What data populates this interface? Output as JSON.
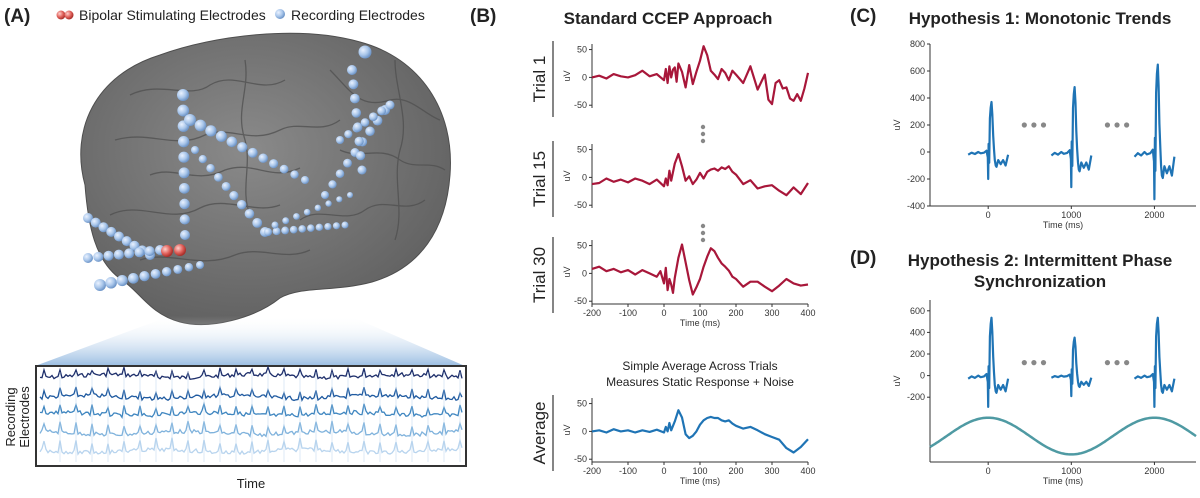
{
  "colors": {
    "trial_trace": "#a8173a",
    "average_trace": "#1f74b5",
    "hypothesis_trace": "#1f74b5",
    "sine_wave": "#4f9aa3",
    "stim_electrode": "#d9534f",
    "rec_electrode": "#a9c6ea",
    "brain": "#727272",
    "dots": "#888888"
  },
  "panel_a": {
    "letter": "(A)",
    "legend_stim": "Bipolar Stimulating Electrodes",
    "legend_rec": "Recording Electrodes",
    "ylabel_line1": "Recording",
    "ylabel_line2": "Electrodes",
    "xlabel": "Time"
  },
  "panel_b": {
    "letter": "(B)",
    "title": "Standard CCEP Approach",
    "average_caption_line1": "Simple Average Across Trials",
    "average_caption_line2": "Measures Static Response + Noise",
    "average_label": "Average"
  },
  "panel_c": {
    "letter": "(C)",
    "title": "Hypothesis 1: Monotonic Trends"
  },
  "panel_d": {
    "letter": "(D)",
    "title_line1": "Hypothesis 2: Intermittent Phase",
    "title_line2": "Synchronization"
  },
  "chart_data": [
    {
      "id": "trial1",
      "type": "line",
      "label": "Trial 1",
      "ylabel": "uV",
      "xlabel": "",
      "xlim": [
        -200,
        400
      ],
      "ylim": [
        -55,
        60
      ],
      "xticks": [],
      "yticks": [
        50,
        0,
        -50
      ],
      "ytick_labels": [
        "50",
        "0",
        "-50"
      ],
      "x": [
        -200,
        -180,
        -160,
        -140,
        -120,
        -100,
        -80,
        -60,
        -40,
        -20,
        0,
        5,
        10,
        15,
        20,
        25,
        30,
        35,
        40,
        50,
        60,
        70,
        80,
        90,
        100,
        110,
        120,
        130,
        140,
        150,
        160,
        170,
        180,
        190,
        200,
        220,
        240,
        260,
        280,
        290,
        300,
        310,
        320,
        330,
        340,
        350,
        360,
        370,
        380,
        390,
        400
      ],
      "y": [
        0,
        3,
        -2,
        6,
        2,
        0,
        4,
        12,
        2,
        6,
        -5,
        15,
        -10,
        20,
        0,
        14,
        18,
        -8,
        25,
        10,
        -18,
        22,
        -12,
        10,
        30,
        56,
        40,
        12,
        5,
        -3,
        15,
        8,
        -5,
        12,
        5,
        -10,
        20,
        -22,
        5,
        -40,
        -48,
        -10,
        -5,
        -20,
        -18,
        -38,
        -42,
        -30,
        -42,
        -20,
        8
      ]
    },
    {
      "id": "trial15",
      "type": "line",
      "label": "Trial 15",
      "ylabel": "uV",
      "xlabel": "",
      "xlim": [
        -200,
        400
      ],
      "ylim": [
        -55,
        60
      ],
      "xticks": [],
      "yticks": [
        50,
        0,
        -50
      ],
      "ytick_labels": [
        "50",
        "0",
        "-50"
      ],
      "x": [
        -200,
        -180,
        -160,
        -140,
        -120,
        -100,
        -80,
        -60,
        -40,
        -20,
        0,
        5,
        10,
        15,
        20,
        30,
        40,
        50,
        60,
        70,
        80,
        90,
        100,
        110,
        120,
        130,
        140,
        150,
        160,
        170,
        180,
        190,
        200,
        220,
        240,
        260,
        280,
        300,
        320,
        340,
        360,
        380,
        400
      ],
      "y": [
        -12,
        -10,
        -2,
        -8,
        -4,
        -9,
        -2,
        -6,
        -12,
        -4,
        -16,
        -2,
        -14,
        12,
        -6,
        25,
        42,
        20,
        -6,
        2,
        -12,
        -4,
        8,
        -2,
        10,
        14,
        16,
        12,
        18,
        15,
        20,
        10,
        5,
        -12,
        -5,
        -20,
        -16,
        -14,
        -24,
        -32,
        -18,
        -30,
        -10
      ]
    },
    {
      "id": "trial30",
      "type": "line",
      "label": "Trial 30",
      "ylabel": "uV",
      "xlabel": "Time (ms)",
      "xlim": [
        -200,
        400
      ],
      "ylim": [
        -55,
        60
      ],
      "xticks": [
        -200,
        -100,
        0,
        100,
        200,
        300,
        400
      ],
      "xtick_labels": [
        "-200",
        "-100",
        "0",
        "100",
        "200",
        "300",
        "400"
      ],
      "yticks": [
        50,
        0,
        -50
      ],
      "ytick_labels": [
        "50",
        "0",
        "-50"
      ],
      "x": [
        -200,
        -180,
        -160,
        -140,
        -120,
        -100,
        -80,
        -60,
        -40,
        -20,
        -10,
        0,
        5,
        10,
        15,
        20,
        25,
        30,
        40,
        50,
        60,
        70,
        80,
        90,
        100,
        110,
        120,
        130,
        140,
        150,
        160,
        170,
        180,
        190,
        200,
        220,
        240,
        260,
        280,
        300,
        320,
        340,
        360,
        380,
        400
      ],
      "y": [
        8,
        12,
        4,
        8,
        2,
        6,
        -2,
        6,
        0,
        -6,
        4,
        -18,
        10,
        -30,
        -10,
        -20,
        -35,
        -8,
        28,
        52,
        20,
        -12,
        -38,
        -25,
        -10,
        12,
        30,
        45,
        40,
        28,
        18,
        12,
        5,
        -6,
        -10,
        -24,
        -15,
        -15,
        -24,
        -32,
        -22,
        -10,
        -18,
        -22,
        -20
      ]
    },
    {
      "id": "average",
      "type": "line",
      "label": "Average",
      "ylabel": "uV",
      "xlabel": "Time (ms)",
      "xlim": [
        -200,
        400
      ],
      "ylim": [
        -55,
        60
      ],
      "xticks": [
        -200,
        -100,
        0,
        100,
        200,
        300,
        400
      ],
      "xtick_labels": [
        "-200",
        "-100",
        "0",
        "100",
        "200",
        "300",
        "400"
      ],
      "yticks": [
        50,
        0,
        -50
      ],
      "ytick_labels": [
        "50",
        "0",
        "-50"
      ],
      "x": [
        -200,
        -180,
        -160,
        -140,
        -120,
        -100,
        -80,
        -60,
        -40,
        -20,
        0,
        5,
        10,
        15,
        20,
        30,
        40,
        50,
        60,
        70,
        80,
        90,
        100,
        110,
        120,
        130,
        140,
        150,
        160,
        170,
        180,
        190,
        200,
        220,
        240,
        260,
        280,
        300,
        320,
        340,
        360,
        380,
        400
      ],
      "y": [
        0,
        2,
        -2,
        4,
        0,
        2,
        -2,
        2,
        -1,
        3,
        -2,
        8,
        0,
        15,
        2,
        18,
        38,
        25,
        -5,
        -12,
        -8,
        0,
        12,
        20,
        24,
        26,
        24,
        24,
        20,
        18,
        20,
        14,
        10,
        5,
        8,
        2,
        -5,
        -10,
        -15,
        -30,
        -38,
        -28,
        -14
      ]
    },
    {
      "id": "hyp1",
      "type": "line",
      "label": "Hypothesis 1",
      "ylabel": "uV",
      "xlabel": "Time (ms)",
      "xlim": [
        -700,
        2500
      ],
      "ylim": [
        -400,
        800
      ],
      "xticks": [
        0,
        1000,
        2000
      ],
      "xtick_labels": [
        "0",
        "1000",
        "2000"
      ],
      "yticks": [
        800,
        600,
        400,
        200,
        0,
        -200,
        -400
      ],
      "ytick_labels": [
        "800",
        "600",
        "400",
        "200",
        "0",
        "-200",
        "-400"
      ],
      "repeats": [
        0,
        1000,
        2000
      ],
      "amplitudes": [
        1.0,
        1.3,
        1.75
      ],
      "gap_dots": [
        550,
        1550
      ],
      "x": [
        -240,
        -200,
        -160,
        -120,
        -90,
        -50,
        -20,
        -5,
        0,
        5,
        12,
        20,
        30,
        40,
        50,
        60,
        70,
        80,
        90,
        100,
        120,
        150,
        180,
        210,
        240
      ],
      "y": [
        -20,
        -5,
        -15,
        0,
        -10,
        -5,
        10,
        -40,
        -200,
        60,
        -80,
        250,
        330,
        370,
        280,
        120,
        20,
        -60,
        -100,
        -110,
        -60,
        -90,
        -60,
        -100,
        -20
      ]
    },
    {
      "id": "hyp2",
      "type": "line",
      "label": "Hypothesis 2",
      "ylabel": "uV",
      "xlabel": "Time (ms)",
      "xlim": [
        -700,
        2500
      ],
      "ylim": [
        -800,
        700
      ],
      "xticks": [
        0,
        1000,
        2000
      ],
      "xtick_labels": [
        "0",
        "1000",
        "2000"
      ],
      "yticks": [
        600,
        400,
        200,
        0,
        -200
      ],
      "ytick_labels": [
        "600",
        "400",
        "200",
        "0",
        "-200"
      ],
      "repeats": [
        0,
        1000,
        2000
      ],
      "amplitudes": [
        1.45,
        0.95,
        1.45
      ],
      "gap_dots": [
        550,
        1550
      ],
      "sine": {
        "period": 2000,
        "peak_at": 0,
        "amplitude": 1,
        "y_center": -560,
        "y_amp": 170
      },
      "x": [
        -240,
        -200,
        -160,
        -120,
        -90,
        -50,
        -20,
        -5,
        0,
        5,
        12,
        20,
        30,
        40,
        50,
        60,
        70,
        80,
        90,
        100,
        120,
        150,
        180,
        210,
        240
      ],
      "y": [
        -20,
        -5,
        -15,
        0,
        -10,
        -5,
        10,
        -40,
        -200,
        60,
        -80,
        250,
        330,
        370,
        280,
        120,
        20,
        -60,
        -100,
        -110,
        -60,
        -90,
        -60,
        -100,
        -20
      ]
    }
  ]
}
